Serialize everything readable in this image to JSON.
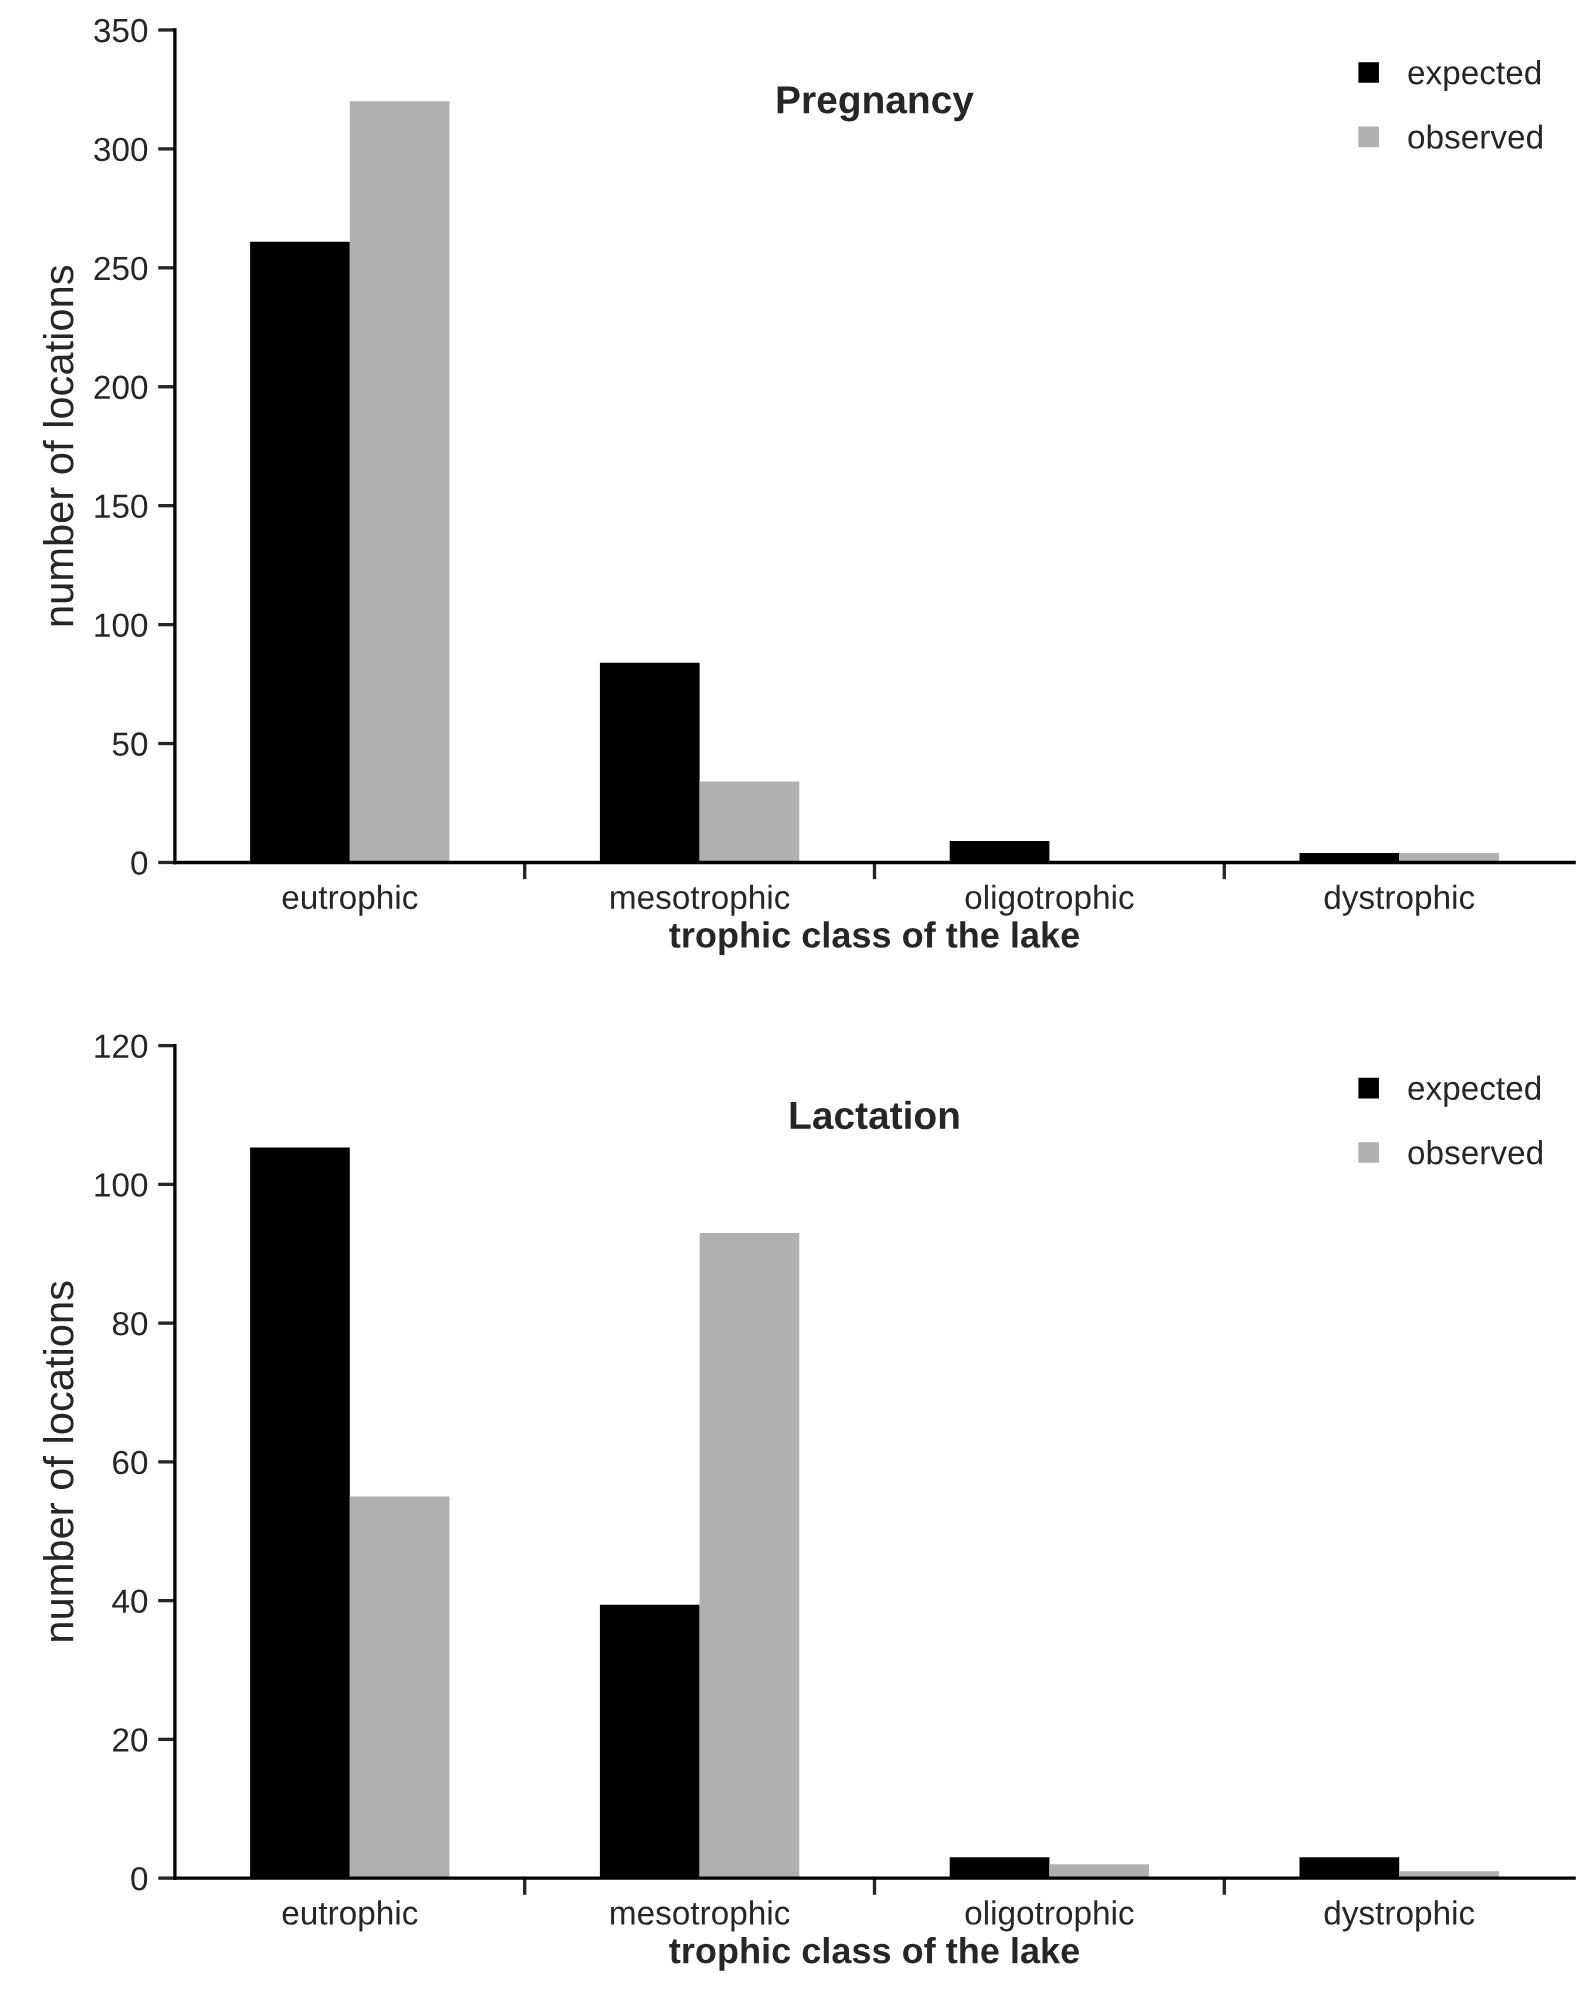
{
  "chart_data": [
    {
      "type": "bar",
      "title": "Pregnancy",
      "xlabel": "trophic class of the lake",
      "ylabel": "number of locations",
      "categories": [
        "eutrophic",
        "mesotrophic",
        "oligotrophic",
        "dystrophic"
      ],
      "series": [
        {
          "name": "expected",
          "color": "#000000",
          "values": [
            261,
            84,
            9,
            4
          ]
        },
        {
          "name": "observed",
          "color": "#b0b0b0",
          "values": [
            320,
            34,
            0,
            4
          ]
        }
      ],
      "ylim": [
        0,
        350
      ],
      "yticks": [
        0,
        50,
        100,
        150,
        200,
        250,
        300,
        350
      ],
      "grid": false,
      "legend": "top right"
    },
    {
      "type": "bar",
      "title": "Lactation",
      "xlabel": "trophic class of the lake",
      "ylabel": "number of locations",
      "categories": [
        "eutrophic",
        "mesotrophic",
        "oligotrophic",
        "dystrophic"
      ],
      "series": [
        {
          "name": "expected",
          "color": "#000000",
          "values": [
            105.3,
            39.4,
            3,
            3
          ]
        },
        {
          "name": "observed",
          "color": "#b0b0b0",
          "values": [
            55,
            93,
            2,
            1
          ]
        }
      ],
      "ylim": [
        0,
        120
      ],
      "yticks": [
        0,
        20,
        40,
        60,
        80,
        100,
        120
      ],
      "grid": false,
      "legend": "top right"
    }
  ]
}
